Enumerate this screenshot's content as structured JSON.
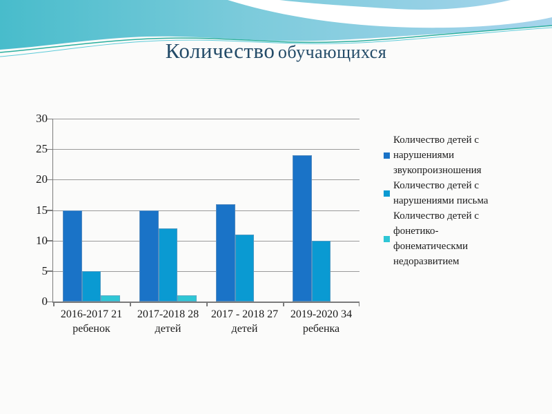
{
  "title": {
    "part1": "Количество",
    "part2": "обучающихся"
  },
  "chart_data": {
    "type": "bar",
    "title": "Количество обучающихся",
    "categories": [
      "2016-2017 21\nребенок",
      "2017-2018 28\nдетей",
      "2017 - 2018 27\nдетей",
      "2019-2020 34\nребенка"
    ],
    "series": [
      {
        "name": "Количество детей с нарушениями звукопроизношения",
        "color": "#1a73c7",
        "values": [
          15,
          15,
          16,
          24
        ]
      },
      {
        "name": "Количество детей с нарушениями письма",
        "color": "#0a9ad2",
        "values": [
          5,
          12,
          11,
          10
        ]
      },
      {
        "name": "Количество детей с фонетико-фонематическми недоразвитием",
        "color": "#2fc6d5",
        "values": [
          1,
          1,
          0,
          0
        ]
      }
    ],
    "xlabel": "",
    "ylabel": "",
    "ylim": [
      0,
      30
    ],
    "yticks": [
      0,
      5,
      10,
      15,
      20,
      25,
      30
    ],
    "grid": true,
    "legend_position": "right",
    "colors": {
      "gridline": "#999999",
      "axis": "#7a7a7a",
      "bar_border": "#7d9bb9",
      "title_text": "#234b68"
    }
  }
}
